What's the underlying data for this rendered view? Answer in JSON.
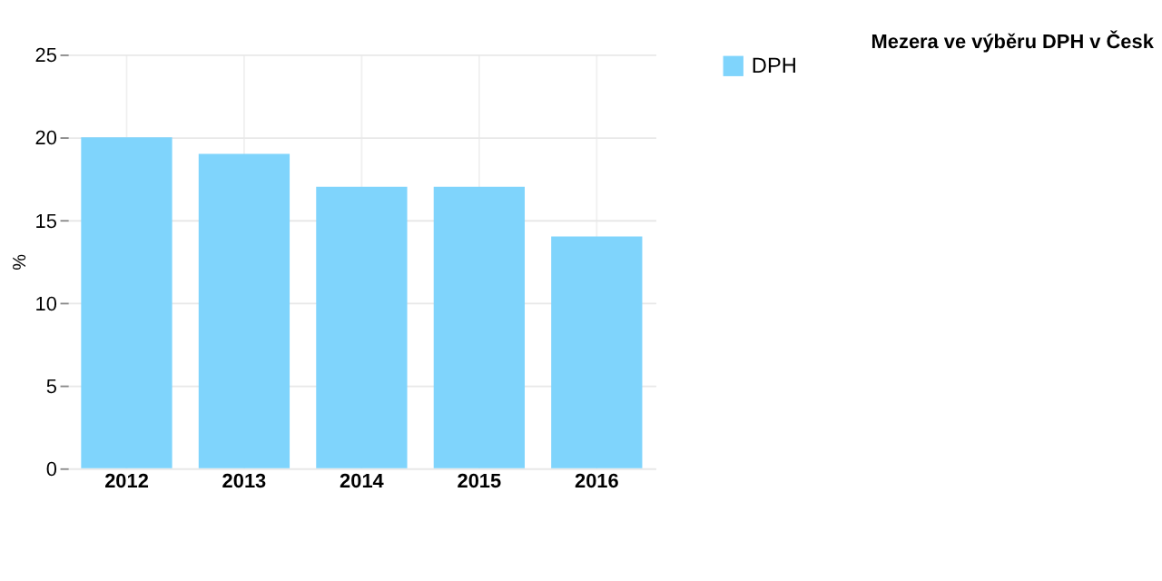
{
  "chart_data": {
    "type": "bar",
    "title": "Mezera ve výběru DPH v Česk",
    "ylabel": "%",
    "categories": [
      "2012",
      "2013",
      "2014",
      "2015",
      "2016"
    ],
    "series": [
      {
        "name": "DPH",
        "color": "#7fd4fc",
        "values": [
          20,
          19,
          17,
          17,
          14
        ]
      }
    ],
    "ylim": [
      0,
      25
    ],
    "yticks": [
      0,
      5,
      10,
      15,
      20,
      25
    ],
    "grid": true,
    "legend": "right"
  }
}
